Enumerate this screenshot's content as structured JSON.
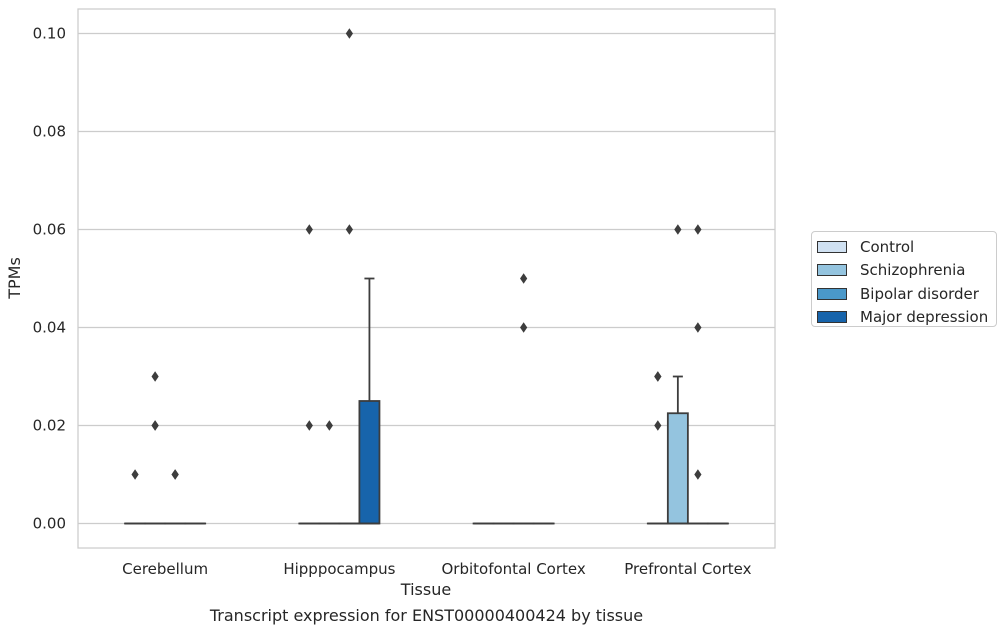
{
  "caption": "Transcript expression for ENST00000400424 by tissue",
  "chart_data": {
    "type": "box",
    "xlabel": "Tissue",
    "ylabel": "TPMs",
    "ylim": [
      -0.005,
      0.105
    ],
    "yticks": [
      "0.00",
      "0.02",
      "0.04",
      "0.06",
      "0.08",
      "0.10"
    ],
    "grid": "horizontal",
    "legend_position": "right",
    "categories": [
      "Cerebellum",
      "Hipppocampus",
      "Orbitofontal Cortex",
      "Prefrontal Cortex"
    ],
    "series": [
      {
        "name": "Control",
        "color": "#d0e1f2"
      },
      {
        "name": "Schizophrenia",
        "color": "#94c4df"
      },
      {
        "name": "Bipolar disorder",
        "color": "#4a98c9"
      },
      {
        "name": "Major depression",
        "color": "#1764ab"
      }
    ],
    "boxes": [
      {
        "category": "Cerebellum",
        "series": "Control",
        "q1": 0,
        "median": 0,
        "q3": 0,
        "whisker_low": 0,
        "whisker_high": 0,
        "outliers": [
          0.01
        ]
      },
      {
        "category": "Cerebellum",
        "series": "Schizophrenia",
        "q1": 0,
        "median": 0,
        "q3": 0,
        "whisker_low": 0,
        "whisker_high": 0,
        "outliers": [
          0.02,
          0.02,
          0.03
        ]
      },
      {
        "category": "Cerebellum",
        "series": "Bipolar disorder",
        "q1": 0,
        "median": 0,
        "q3": 0,
        "whisker_low": 0,
        "whisker_high": 0,
        "outliers": [
          0.01,
          0.01
        ]
      },
      {
        "category": "Cerebellum",
        "series": "Major depression",
        "q1": 0,
        "median": 0,
        "q3": 0,
        "whisker_low": 0,
        "whisker_high": 0,
        "outliers": []
      },
      {
        "category": "Hipppocampus",
        "series": "Control",
        "q1": 0,
        "median": 0,
        "q3": 0,
        "whisker_low": 0,
        "whisker_high": 0,
        "outliers": [
          0.02,
          0.06
        ]
      },
      {
        "category": "Hipppocampus",
        "series": "Schizophrenia",
        "q1": 0,
        "median": 0,
        "q3": 0,
        "whisker_low": 0,
        "whisker_high": 0,
        "outliers": [
          0.02
        ]
      },
      {
        "category": "Hipppocampus",
        "series": "Bipolar disorder",
        "q1": 0,
        "median": 0,
        "q3": 0,
        "whisker_low": 0,
        "whisker_high": 0,
        "outliers": [
          0.06,
          0.1
        ]
      },
      {
        "category": "Hipppocampus",
        "series": "Major depression",
        "q1": 0,
        "median": 0,
        "q3": 0.025,
        "whisker_low": 0,
        "whisker_high": 0.05,
        "outliers": []
      },
      {
        "category": "Orbitofontal Cortex",
        "series": "Control",
        "q1": 0,
        "median": 0,
        "q3": 0,
        "whisker_low": 0,
        "whisker_high": 0,
        "outliers": []
      },
      {
        "category": "Orbitofontal Cortex",
        "series": "Schizophrenia",
        "q1": 0,
        "median": 0,
        "q3": 0,
        "whisker_low": 0,
        "whisker_high": 0,
        "outliers": []
      },
      {
        "category": "Orbitofontal Cortex",
        "series": "Bipolar disorder",
        "q1": 0,
        "median": 0,
        "q3": 0,
        "whisker_low": 0,
        "whisker_high": 0,
        "outliers": [
          0.04,
          0.05
        ]
      },
      {
        "category": "Orbitofontal Cortex",
        "series": "Major depression",
        "q1": 0,
        "median": 0,
        "q3": 0,
        "whisker_low": 0,
        "whisker_high": 0,
        "outliers": []
      },
      {
        "category": "Prefrontal Cortex",
        "series": "Control",
        "q1": 0,
        "median": 0,
        "q3": 0,
        "whisker_low": 0,
        "whisker_high": 0,
        "outliers": [
          0.02,
          0.03,
          0.03
        ]
      },
      {
        "category": "Prefrontal Cortex",
        "series": "Schizophrenia",
        "q1": 0,
        "median": 0,
        "q3": 0.0225,
        "whisker_low": 0,
        "whisker_high": 0.03,
        "outliers": [
          0.06
        ]
      },
      {
        "category": "Prefrontal Cortex",
        "series": "Bipolar disorder",
        "q1": 0,
        "median": 0,
        "q3": 0,
        "whisker_low": 0,
        "whisker_high": 0,
        "outliers": [
          0.01,
          0.04,
          0.06
        ]
      },
      {
        "category": "Prefrontal Cortex",
        "series": "Major depression",
        "q1": 0,
        "median": 0,
        "q3": 0,
        "whisker_low": 0,
        "whisker_high": 0,
        "outliers": []
      }
    ]
  }
}
